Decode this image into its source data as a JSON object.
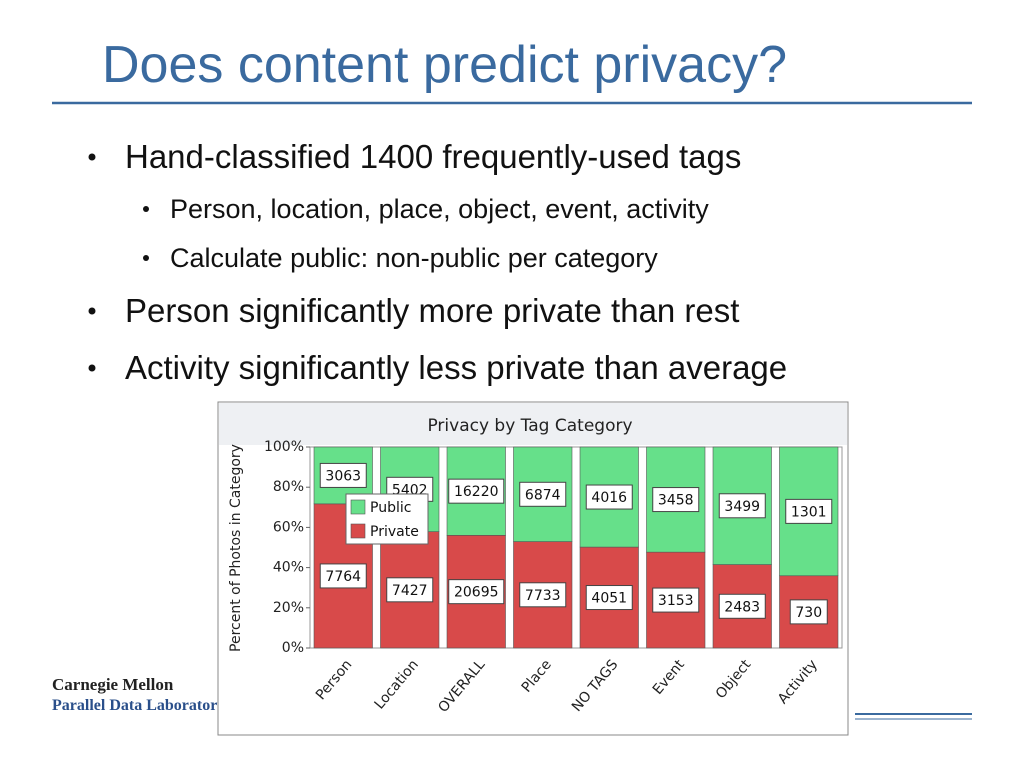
{
  "slide": {
    "title": "Does content predict privacy?",
    "bullets": [
      {
        "text": "Hand-classified 1400 frequently-used tags",
        "level": 1
      },
      {
        "text": "Person, location, place, object, event, activity",
        "level": 2
      },
      {
        "text": "Calculate public: non-public per category",
        "level": 2
      },
      {
        "text": "Person significantly more private than rest",
        "level": 1
      },
      {
        "text": "Activity significantly less private than average",
        "level": 1
      }
    ],
    "logo": {
      "line1": "Carnegie Mellon",
      "line2": "Parallel Data Laboratory"
    }
  },
  "chart_data": {
    "type": "bar",
    "stacked": true,
    "normalize": true,
    "title": "Privacy by Tag Category",
    "y_label": "Percent of Photos in Category",
    "categories": [
      "Person",
      "Location",
      "OVERALL",
      "Place",
      "NO TAGS",
      "Event",
      "Object",
      "Activity"
    ],
    "series": [
      {
        "name": "Private",
        "color": "#d84a4a",
        "values": [
          7764,
          7427,
          20695,
          7733,
          4051,
          3153,
          2483,
          730
        ]
      },
      {
        "name": "Public",
        "color": "#66e08a",
        "values": [
          3063,
          5402,
          16220,
          6874,
          4016,
          3458,
          3499,
          1301
        ]
      }
    ],
    "ylim": [
      0,
      100
    ],
    "yticks": [
      {
        "value": 0,
        "label": "0%"
      },
      {
        "value": 20,
        "label": "20%"
      },
      {
        "value": 40,
        "label": "40%"
      },
      {
        "value": 60,
        "label": "60%"
      },
      {
        "value": 80,
        "label": "80%"
      },
      {
        "value": 100,
        "label": "100%"
      }
    ],
    "legend": "upper left"
  }
}
